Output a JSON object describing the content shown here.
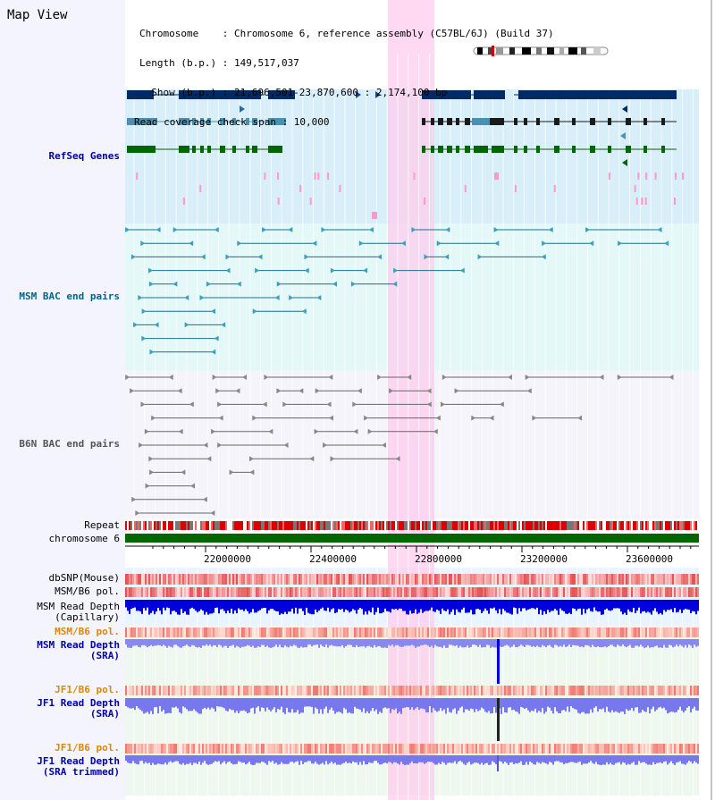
{
  "window": {
    "title": "Map View"
  },
  "info": {
    "chromosome_line": "Chromosome    : Chromosome 6, reference assembly (C57BL/6J) (Build 37)",
    "length_line": "Length (b.p.) : 149,517,037",
    "show_line": "  Show (b.p.) : 21,696,501-23,870,600 : 2,174,100 bp",
    "coverage_line": "Read coverage check span : 10,000"
  },
  "tracks": {
    "refseq": "RefSeq Genes",
    "msm_bac": "MSM BAC end pairs",
    "b6n_bac": "B6N BAC end pairs",
    "repeat": "Repeat",
    "chromosome": "chromosome 6",
    "dbsnp": "dbSNP(Mouse)",
    "msm_b6_pol": "MSM/B6 pol.",
    "msm_depth_cap": "MSM Read Depth\n(Capillary)",
    "msm_b6_pol2": "MSM/B6 pol.",
    "msm_depth_sra": "MSM Read Depth\n(SRA)",
    "jf1_b6_pol": "JF1/B6 pol.",
    "jf1_depth_sra": "JF1 Read Depth\n(SRA)",
    "jf1_b6_pol2": "JF1/B6 pol.",
    "jf1_depth_trim": "JF1 Read Depth\n(SRA trimmed)"
  },
  "axis": {
    "ticks": [
      "22000000",
      "22400000",
      "22800000",
      "23200000",
      "23600000"
    ]
  },
  "colors": {
    "refseq_label": "#000099",
    "msm_label": "#006688",
    "b6n_label": "#555555",
    "highlight": "#ffccee",
    "pol_label_orange": "#dd8800",
    "depth_label_blue": "#0000aa",
    "chrom_green": "#006600"
  }
}
